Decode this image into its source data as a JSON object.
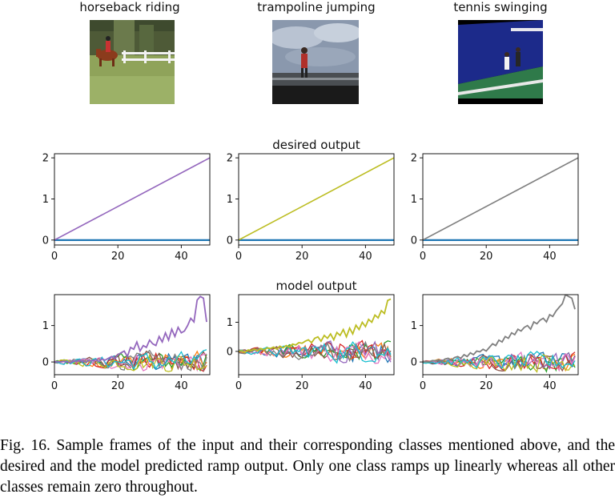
{
  "figure": {
    "frame_titles": [
      "horseback riding",
      "trampoline jumping",
      "tennis swinging"
    ],
    "desired_title": "desired output",
    "model_title": "model output",
    "caption": "Fig. 16.  Sample frames of the input and their corresponding classes mentioned above, and the desired and the model predicted ramp output. Only one class ramps up linearly whereas all other classes remain zero throughout."
  },
  "chart_data": [
    {
      "type": "line",
      "row": "desired",
      "panel": 1,
      "title": "",
      "xlim": [
        0,
        49
      ],
      "ylim": [
        -0.12,
        2.1
      ],
      "xticks": [
        0,
        20,
        40
      ],
      "yticks": [
        0,
        1,
        2
      ],
      "highlight_color": "#9467bd",
      "series": [
        {
          "name": "ramp",
          "color": "#9467bd",
          "start": 0,
          "end": 2
        },
        {
          "name": "zero",
          "color": "#1f77b4",
          "start": 0,
          "end": 0
        }
      ]
    },
    {
      "type": "line",
      "row": "desired",
      "panel": 2,
      "title": "desired output",
      "xlim": [
        0,
        49
      ],
      "ylim": [
        -0.12,
        2.1
      ],
      "xticks": [
        0,
        20,
        40
      ],
      "yticks": [
        0,
        1,
        2
      ],
      "highlight_color": "#bcbd22",
      "series": [
        {
          "name": "ramp",
          "color": "#bcbd22",
          "start": 0,
          "end": 2
        },
        {
          "name": "zero",
          "color": "#1f77b4",
          "start": 0,
          "end": 0
        }
      ]
    },
    {
      "type": "line",
      "row": "desired",
      "panel": 3,
      "title": "",
      "xlim": [
        0,
        49
      ],
      "ylim": [
        -0.12,
        2.1
      ],
      "xticks": [
        0,
        20,
        40
      ],
      "yticks": [
        0,
        1,
        2
      ],
      "highlight_color": "#7f7f7f",
      "series": [
        {
          "name": "ramp",
          "color": "#7f7f7f",
          "start": 0,
          "end": 2
        },
        {
          "name": "zero",
          "color": "#1f77b4",
          "start": 0,
          "end": 0
        }
      ]
    },
    {
      "type": "line",
      "row": "model",
      "panel": 1,
      "title": "",
      "xlim": [
        0,
        49
      ],
      "ylim": [
        -0.35,
        1.85
      ],
      "xticks": [
        0,
        20,
        40
      ],
      "yticks": [
        0,
        1
      ],
      "highlight_color": "#9467bd",
      "highlight_values": [
        0,
        0.01,
        0,
        0.02,
        0,
        -0.02,
        0.03,
        0.01,
        0.05,
        0.02,
        0,
        0.04,
        0.03,
        0.06,
        0.02,
        0.08,
        0.05,
        0.1,
        0.15,
        0.08,
        0.2,
        0.25,
        0.3,
        0.15,
        0.4,
        0.35,
        0.55,
        0.3,
        0.45,
        0.4,
        0.6,
        0.5,
        0.45,
        0.7,
        0.55,
        0.8,
        0.6,
        0.9,
        0.7,
        0.95,
        0.8,
        0.85,
        1.0,
        1.2,
        1.1,
        1.7,
        1.8,
        1.75,
        1.1
      ],
      "noise_colors": [
        "#1f77b4",
        "#ff7f0e",
        "#2ca02c",
        "#d62728",
        "#8c564b",
        "#e377c2",
        "#7f7f7f",
        "#bcbd22",
        "#17becf"
      ],
      "noise_amplitude": 0.38
    },
    {
      "type": "line",
      "row": "model",
      "panel": 2,
      "title": "model output",
      "xlim": [
        0,
        49
      ],
      "ylim": [
        -0.8,
        1.95
      ],
      "xticks": [
        0,
        20,
        40
      ],
      "yticks": [
        0,
        1
      ],
      "highlight_color": "#bcbd22",
      "highlight_values": [
        0,
        0.02,
        -0.03,
        0.05,
        0.03,
        0.08,
        0.02,
        0.1,
        0.05,
        0.12,
        0.1,
        0.15,
        0.08,
        0.18,
        0.12,
        0.2,
        0.15,
        0.25,
        0.22,
        0.3,
        0.28,
        0.35,
        0.4,
        0.3,
        0.45,
        0.5,
        0.35,
        0.55,
        0.45,
        0.6,
        0.4,
        0.65,
        0.55,
        0.75,
        0.5,
        0.8,
        0.6,
        0.9,
        0.75,
        1.0,
        0.85,
        1.1,
        1.0,
        1.25,
        1.15,
        1.4,
        1.3,
        1.75,
        1.8
      ],
      "noise_colors": [
        "#1f77b4",
        "#ff7f0e",
        "#2ca02c",
        "#d62728",
        "#9467bd",
        "#8c564b",
        "#e377c2",
        "#7f7f7f",
        "#17becf"
      ],
      "noise_amplitude": 0.5
    },
    {
      "type": "line",
      "row": "model",
      "panel": 3,
      "title": "",
      "xlim": [
        0,
        49
      ],
      "ylim": [
        -0.35,
        1.85
      ],
      "xticks": [
        0,
        20,
        40
      ],
      "yticks": [
        0,
        1
      ],
      "highlight_color": "#7f7f7f",
      "highlight_values": [
        0,
        0.02,
        0,
        0.04,
        0.03,
        0.06,
        0.02,
        0.08,
        0.1,
        0.05,
        0.12,
        0.15,
        0.1,
        0.2,
        0.15,
        0.25,
        0.2,
        0.3,
        0.28,
        0.35,
        0.3,
        0.4,
        0.5,
        0.45,
        0.6,
        0.55,
        0.7,
        0.65,
        0.8,
        0.75,
        0.9,
        0.85,
        0.95,
        1.0,
        0.9,
        1.1,
        1.05,
        1.15,
        1.2,
        1.1,
        1.3,
        1.25,
        1.4,
        1.5,
        1.6,
        1.85,
        1.8,
        1.75,
        1.45
      ],
      "noise_colors": [
        "#1f77b4",
        "#ff7f0e",
        "#2ca02c",
        "#d62728",
        "#9467bd",
        "#8c564b",
        "#e377c2",
        "#bcbd22",
        "#17becf"
      ],
      "noise_amplitude": 0.35
    }
  ]
}
